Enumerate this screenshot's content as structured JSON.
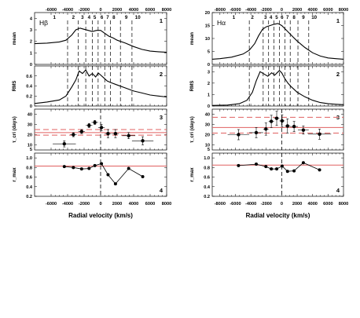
{
  "chart_data": [
    {
      "type": "line",
      "line_label": "Hβ",
      "xlabel": "Radial velocity (km/s)",
      "xlim": [
        -8000,
        8000
      ],
      "x_ticks": [
        -6000,
        -4000,
        -2000,
        0,
        2000,
        4000,
        6000,
        8000
      ],
      "x_tick_labels": [
        "-6000",
        "-4000",
        "-2000",
        "0",
        "2000",
        "4000",
        "6000",
        "8000"
      ],
      "bin_edges": [
        -4000,
        -2700,
        -1800,
        -1000,
        -300,
        500,
        1200,
        2400,
        3800
      ],
      "bin_labels": [
        {
          "label": "1",
          "x": -5600
        },
        {
          "label": "2",
          "x": -3300
        },
        {
          "label": "3",
          "x": -2200
        },
        {
          "label": "4",
          "x": -1400
        },
        {
          "label": "5",
          "x": -700
        },
        {
          "label": "6",
          "x": 150
        },
        {
          "label": "7",
          "x": 850
        },
        {
          "label": "8",
          "x": 1600
        },
        {
          "label": "9",
          "x": 3100
        },
        {
          "label": "10",
          "x": 4500
        }
      ],
      "panels": [
        {
          "number": "1",
          "ylabel": "mean",
          "ylim": [
            0,
            4.5
          ],
          "y_ticks": [
            0,
            1,
            2,
            3,
            4
          ],
          "y_tick_labels": [
            "0",
            "1",
            "2",
            "3",
            "4"
          ],
          "series": [
            {
              "x": [
                -8000,
                -6500,
                -5000,
                -4200,
                -3500,
                -3000,
                -2500,
                -2000,
                -1500,
                -1000,
                -500,
                0,
                500,
                1000,
                1500,
                2000,
                3000,
                4000,
                5000,
                6000,
                7000,
                8000
              ],
              "y": [
                1.8,
                1.85,
                1.95,
                2.1,
                2.55,
                3.0,
                3.15,
                3.05,
                2.95,
                2.85,
                2.95,
                2.95,
                2.7,
                2.45,
                2.3,
                2.1,
                1.85,
                1.55,
                1.3,
                1.15,
                1.1,
                1.05
              ]
            }
          ]
        },
        {
          "number": "2",
          "ylabel": "RMS",
          "ylim": [
            0,
            0.8
          ],
          "y_ticks": [
            0,
            0.2,
            0.4,
            0.6
          ],
          "y_tick_labels": [
            "0",
            "0.2",
            "0.4",
            "0.6"
          ],
          "series": [
            {
              "x": [
                -8000,
                -6500,
                -5000,
                -4200,
                -3500,
                -3000,
                -2600,
                -2200,
                -1800,
                -1400,
                -1000,
                -600,
                -300,
                0,
                400,
                800,
                1200,
                2000,
                3000,
                4000,
                5000,
                6000,
                7000,
                8000
              ],
              "y": [
                0.05,
                0.08,
                0.12,
                0.2,
                0.38,
                0.52,
                0.7,
                0.65,
                0.72,
                0.6,
                0.65,
                0.58,
                0.66,
                0.62,
                0.56,
                0.5,
                0.47,
                0.42,
                0.36,
                0.3,
                0.26,
                0.22,
                0.2,
                0.18
              ]
            }
          ]
        },
        {
          "number": "3",
          "ylabel": "τ_cri (days)",
          "ylim": [
            5,
            45
          ],
          "y_ticks": [
            10,
            20,
            30,
            40
          ],
          "y_tick_labels": [
            "10",
            "20",
            "30",
            "40"
          ],
          "bottom_tick_labels": [
            "5"
          ],
          "hlines": [
            {
              "y": 22,
              "style": "solid"
            },
            {
              "y": 25,
              "style": "dashed"
            },
            {
              "y": 19.5,
              "style": "dashed"
            }
          ],
          "points": [
            {
              "x": -4400,
              "y": 11,
              "xerr": 1400,
              "yerr": 3
            },
            {
              "x": -3300,
              "y": 20,
              "xerr": 400,
              "yerr": 2
            },
            {
              "x": -2300,
              "y": 23,
              "xerr": 400,
              "yerr": 2
            },
            {
              "x": -1400,
              "y": 29,
              "xerr": 400,
              "yerr": 2
            },
            {
              "x": -700,
              "y": 32,
              "xerr": 400,
              "yerr": 2
            },
            {
              "x": 100,
              "y": 27,
              "xerr": 400,
              "yerr": 3
            },
            {
              "x": 900,
              "y": 21,
              "xerr": 400,
              "yerr": 4
            },
            {
              "x": 1800,
              "y": 21,
              "xerr": 400,
              "yerr": 4
            },
            {
              "x": 3400,
              "y": 19,
              "xerr": 800,
              "yerr": 3
            },
            {
              "x": 5100,
              "y": 14,
              "xerr": 1300,
              "yerr": 4
            }
          ]
        },
        {
          "number": "4",
          "ylabel": "r_max",
          "ylim": [
            0.2,
            1.1
          ],
          "y_ticks": [
            0.2,
            0.4,
            0.6,
            0.8,
            1.0
          ],
          "y_tick_labels": [
            "0.2",
            "0.4",
            "0.6",
            "0.8",
            "1.0"
          ],
          "hlines": [
            {
              "y": 0.83,
              "style": "solid"
            }
          ],
          "series": [
            {
              "x": [
                -4400,
                -3300,
                -2300,
                -1400,
                -700,
                100,
                900,
                1800,
                3400,
                5100
              ],
              "y": [
                0.82,
                0.8,
                0.77,
                0.78,
                0.84,
                0.88,
                0.65,
                0.46,
                0.78,
                0.61
              ]
            }
          ]
        }
      ]
    },
    {
      "type": "line",
      "line_label": "Hα",
      "xlabel": "Radial velocity (km/s)",
      "xlim": [
        -9000,
        8000
      ],
      "x_ticks": [
        -8000,
        -6000,
        -4000,
        -2000,
        0,
        2000,
        4000,
        6000,
        8000
      ],
      "x_tick_labels": [
        "-8000",
        "-6000",
        "-4000",
        "-2000",
        "0",
        "2000",
        "4000",
        "6000",
        "8000"
      ],
      "bin_edges": [
        -4200,
        -2400,
        -1700,
        -1000,
        -300,
        400,
        1100,
        2100,
        3500
      ],
      "bin_labels": [
        {
          "label": "1",
          "x": -6200
        },
        {
          "label": "2",
          "x": -3800
        },
        {
          "label": "3",
          "x": -2100
        },
        {
          "label": "4",
          "x": -1400
        },
        {
          "label": "5",
          "x": -650
        },
        {
          "label": "6",
          "x": 50
        },
        {
          "label": "7",
          "x": 750
        },
        {
          "label": "8",
          "x": 1600
        },
        {
          "label": "9",
          "x": 2800
        },
        {
          "label": "10",
          "x": 4200
        }
      ],
      "panels": [
        {
          "number": "1",
          "ylabel": "mean",
          "ylim": [
            0,
            20
          ],
          "y_ticks": [
            0,
            5,
            10,
            15,
            20
          ],
          "y_tick_labels": [
            "0",
            "5",
            "10",
            "15",
            "20"
          ],
          "series": [
            {
              "x": [
                -9000,
                -8000,
                -6500,
                -5000,
                -4200,
                -3500,
                -3000,
                -2500,
                -2000,
                -1500,
                -1000,
                -500,
                0,
                500,
                1000,
                1500,
                2000,
                3000,
                4000,
                5000,
                6000,
                7000,
                8000
              ],
              "y": [
                2,
                2.2,
                2.8,
                4,
                5.5,
                8,
                11,
                13.5,
                14.5,
                15,
                15.5,
                15.8,
                15,
                13.5,
                12,
                10.5,
                9,
                6.5,
                4.5,
                3.2,
                2.5,
                2.2,
                2
              ]
            }
          ]
        },
        {
          "number": "2",
          "ylabel": "RMS",
          "ylim": [
            0,
            3.5
          ],
          "y_ticks": [
            0,
            1,
            2,
            3
          ],
          "y_tick_labels": [
            "0",
            "1",
            "2",
            "3"
          ],
          "series": [
            {
              "x": [
                -9000,
                -7000,
                -5500,
                -4500,
                -3800,
                -3300,
                -2800,
                -2300,
                -1800,
                -1300,
                -900,
                -600,
                -300,
                0,
                400,
                800,
                1200,
                2000,
                3000,
                4000,
                5000,
                6000,
                7000,
                8000
              ],
              "y": [
                0.05,
                0.08,
                0.2,
                0.5,
                1.2,
                2.2,
                3.0,
                2.8,
                2.6,
                2.9,
                2.7,
                2.9,
                3.1,
                2.9,
                2.4,
                2.0,
                1.7,
                1.2,
                0.8,
                0.5,
                0.3,
                0.2,
                0.15,
                0.12
              ]
            }
          ]
        },
        {
          "number": "3",
          "ylabel": "τ_cri (days)",
          "ylim": [
            5,
            45
          ],
          "y_ticks": [
            10,
            20,
            30,
            40
          ],
          "y_tick_labels": [
            "10",
            "20",
            "30",
            "40"
          ],
          "bottom_tick_labels": [
            "5"
          ],
          "hlines": [
            {
              "y": 27,
              "style": "solid"
            },
            {
              "y": 37,
              "style": "dashed"
            },
            {
              "y": 21.5,
              "style": "dashed"
            }
          ],
          "points": [
            {
              "x": -5600,
              "y": 20,
              "xerr": 1400,
              "yerr": 5
            },
            {
              "x": -3300,
              "y": 22,
              "xerr": 900,
              "yerr": 5
            },
            {
              "x": -2050,
              "y": 25.5,
              "xerr": 350,
              "yerr": 6
            },
            {
              "x": -1350,
              "y": 33,
              "xerr": 350,
              "yerr": 6
            },
            {
              "x": -650,
              "y": 36,
              "xerr": 350,
              "yerr": 7
            },
            {
              "x": 50,
              "y": 33.5,
              "xerr": 350,
              "yerr": 6
            },
            {
              "x": 750,
              "y": 28.5,
              "xerr": 350,
              "yerr": 7
            },
            {
              "x": 1600,
              "y": 28,
              "xerr": 500,
              "yerr": 5
            },
            {
              "x": 2800,
              "y": 24.5,
              "xerr": 700,
              "yerr": 4
            },
            {
              "x": 4900,
              "y": 20.5,
              "xerr": 1500,
              "yerr": 5
            }
          ]
        },
        {
          "number": "4",
          "ylabel": "r_max",
          "ylim": [
            0.2,
            1.1
          ],
          "y_ticks": [
            0.2,
            0.4,
            0.6,
            0.8,
            1.0
          ],
          "y_tick_labels": [
            "0.2",
            "0.4",
            "0.6",
            "0.8",
            "1.0"
          ],
          "hlines": [
            {
              "y": 0.85,
              "style": "solid"
            }
          ],
          "series": [
            {
              "x": [
                -5600,
                -3300,
                -2050,
                -1350,
                -650,
                50,
                750,
                1600,
                2800,
                4900
              ],
              "y": [
                0.84,
                0.87,
                0.82,
                0.77,
                0.77,
                0.83,
                0.72,
                0.73,
                0.9,
                0.75
              ]
            }
          ]
        }
      ]
    }
  ],
  "colors": {
    "curve": "#000000",
    "reference_line": "#e06060",
    "frame": "#000000",
    "vline": "#000000"
  }
}
